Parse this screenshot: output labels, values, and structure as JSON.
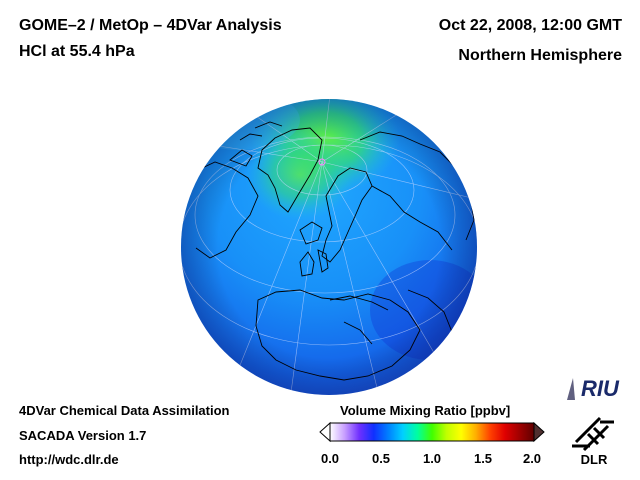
{
  "header": {
    "title_line1": "GOME–2 / MetOp – 4DVar Analysis",
    "title_line2": "HCl at 55.4 hPa",
    "date": "Oct 22, 2008, 12:00 GMT",
    "region": "Northern Hemisphere"
  },
  "footer": {
    "line1": "4DVar Chemical Data Assimilation",
    "line2": "SACADA Version 1.7",
    "line3": "http://wdc.dlr.de"
  },
  "colorbar": {
    "title": "Volume Mixing Ratio [ppbv]",
    "ticks": [
      "0.0",
      "0.5",
      "1.0",
      "1.5",
      "2.0"
    ],
    "min": 0.0,
    "max": 2.0,
    "colors": [
      "#ffffff",
      "#c8a0ff",
      "#7030ff",
      "#1030ff",
      "#0080ff",
      "#00d0ff",
      "#00ffa0",
      "#40ff00",
      "#c0ff00",
      "#ffff00",
      "#ffb000",
      "#ff4000",
      "#e00000",
      "#a00000",
      "#600000"
    ]
  },
  "logos": {
    "riu": "RIU",
    "dlr": "DLR"
  },
  "map": {
    "projection": "orthographic",
    "center": "North Pole",
    "ocean_value_ppbv": 0.45,
    "arctic_max_ppbv": 1.0,
    "colors": {
      "background_field": "#1870f0",
      "high_field": "#40e060",
      "coast": "#000000",
      "grid": "#c8d8ff"
    }
  }
}
